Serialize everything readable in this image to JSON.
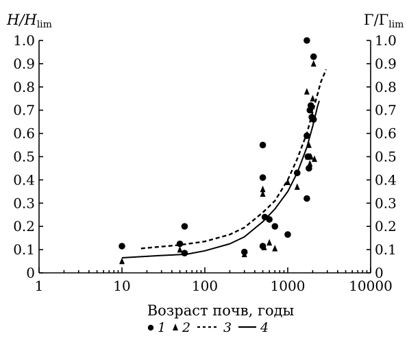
{
  "chart_data": {
    "type": "scatter",
    "x_scale": "log",
    "xlim": [
      1,
      10000
    ],
    "ylim": [
      0,
      1.0
    ],
    "x_ticks": [
      "1",
      "10",
      "100",
      "1000",
      "10000"
    ],
    "y_ticks": [
      "0",
      "0.1",
      "0.2",
      "0.3",
      "0.4",
      "0.5",
      "0.6",
      "0.7",
      "0.8",
      "0.9",
      "1.0"
    ],
    "y_ticks_right": [
      "0",
      "0.1",
      "0.2",
      "0.3",
      "0.4",
      "0.5",
      "0.6",
      "0.7",
      "0.8",
      "0.9",
      "1.0"
    ],
    "ylabel_left": {
      "main": "H/H",
      "sub": "lim"
    },
    "ylabel_right": {
      "main": "Γ/Γ",
      "sub": "lim"
    },
    "xlabel": "Возраст почв, годы",
    "grid": false,
    "legend_position": "bottom",
    "series": [
      {
        "name": "1",
        "marker": "circle",
        "points": [
          [
            10,
            0.115
          ],
          [
            50,
            0.125
          ],
          [
            57,
            0.2
          ],
          [
            57,
            0.085
          ],
          [
            300,
            0.09
          ],
          [
            500,
            0.55
          ],
          [
            500,
            0.41
          ],
          [
            500,
            0.115
          ],
          [
            530,
            0.24
          ],
          [
            600,
            0.23
          ],
          [
            700,
            0.2
          ],
          [
            1000,
            0.165
          ],
          [
            1300,
            0.43
          ],
          [
            1700,
            1.0
          ],
          [
            1700,
            0.59
          ],
          [
            1700,
            0.32
          ],
          [
            1750,
            0.5
          ],
          [
            1800,
            0.45
          ],
          [
            1800,
            0.5
          ],
          [
            1850,
            0.7
          ],
          [
            1900,
            0.72
          ],
          [
            1950,
            0.67
          ],
          [
            2050,
            0.93
          ],
          [
            2050,
            0.66
          ]
        ]
      },
      {
        "name": "2",
        "marker": "triangle",
        "points": [
          [
            10,
            0.05
          ],
          [
            50,
            0.1
          ],
          [
            300,
            0.08
          ],
          [
            500,
            0.36
          ],
          [
            500,
            0.34
          ],
          [
            520,
            0.11
          ],
          [
            600,
            0.13
          ],
          [
            700,
            0.105
          ],
          [
            1000,
            0.39
          ],
          [
            1300,
            0.37
          ],
          [
            1700,
            0.78
          ],
          [
            1750,
            0.5
          ],
          [
            1800,
            0.55
          ],
          [
            1850,
            0.47
          ],
          [
            1900,
            0.5
          ],
          [
            2000,
            0.75
          ],
          [
            2050,
            0.9
          ],
          [
            2100,
            0.49
          ]
        ]
      },
      {
        "name": "3",
        "style": "dashed",
        "points": [
          [
            17,
            0.105
          ],
          [
            50,
            0.12
          ],
          [
            100,
            0.135
          ],
          [
            200,
            0.165
          ],
          [
            300,
            0.195
          ],
          [
            500,
            0.26
          ],
          [
            700,
            0.31
          ],
          [
            1000,
            0.4
          ],
          [
            1300,
            0.49
          ],
          [
            1700,
            0.6
          ],
          [
            2100,
            0.72
          ],
          [
            2500,
            0.82
          ],
          [
            2900,
            0.875
          ]
        ]
      },
      {
        "name": "4",
        "style": "solid",
        "points": [
          [
            10,
            0.065
          ],
          [
            30,
            0.075
          ],
          [
            60,
            0.08
          ],
          [
            100,
            0.095
          ],
          [
            200,
            0.125
          ],
          [
            300,
            0.155
          ],
          [
            500,
            0.22
          ],
          [
            700,
            0.275
          ],
          [
            1000,
            0.35
          ],
          [
            1300,
            0.43
          ],
          [
            1700,
            0.54
          ],
          [
            2000,
            0.63
          ],
          [
            2300,
            0.72
          ],
          [
            2400,
            0.74
          ]
        ]
      }
    ]
  }
}
